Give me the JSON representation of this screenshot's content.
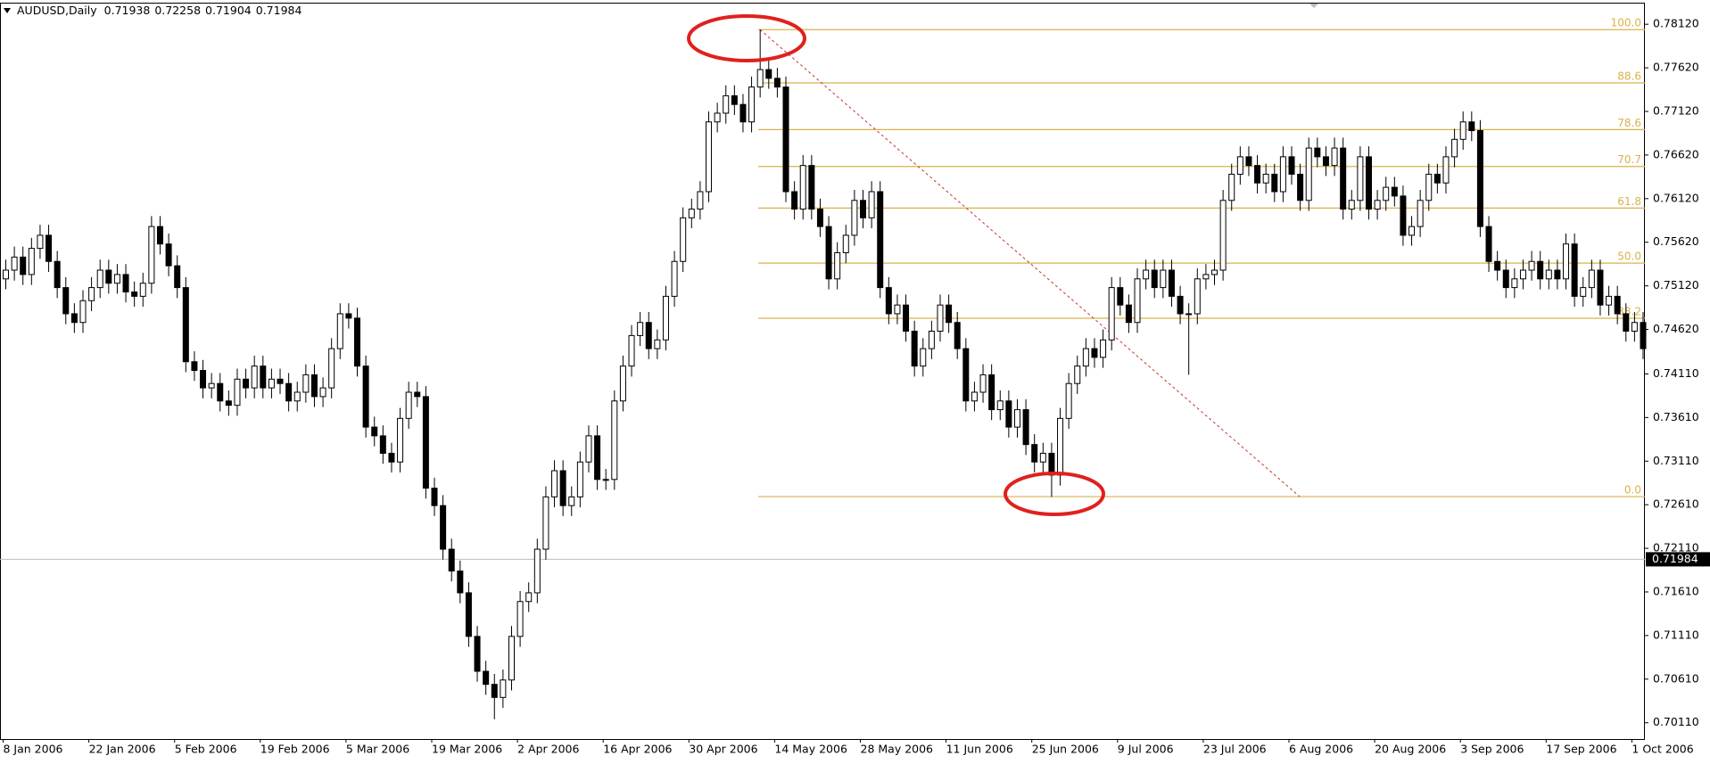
{
  "chart_data": {
    "type": "candlestick",
    "symbol": "AUDUSD,Daily",
    "header_values": [
      0.71938,
      0.72258,
      0.71904,
      0.71984
    ],
    "categories": [
      "8 Jan 2006",
      null,
      null,
      null,
      null,
      null,
      null,
      null,
      null,
      null,
      "22 Jan 2006",
      null,
      null,
      null,
      null,
      null,
      null,
      null,
      null,
      null,
      "5 Feb 2006",
      null,
      null,
      null,
      null,
      null,
      null,
      null,
      null,
      null,
      "19 Feb 2006",
      null,
      null,
      null,
      null,
      null,
      null,
      null,
      null,
      null,
      "5 Mar 2006",
      null,
      null,
      null,
      null,
      null,
      null,
      null,
      null,
      null,
      "19 Mar 2006",
      null,
      null,
      null,
      null,
      null,
      null,
      null,
      null,
      null,
      "2 Apr 2006",
      null,
      null,
      null,
      null,
      null,
      null,
      null,
      null,
      null,
      "16 Apr 2006",
      null,
      null,
      null,
      null,
      null,
      null,
      null,
      null,
      null,
      "30 Apr 2006",
      null,
      null,
      null,
      null,
      null,
      null,
      null,
      null,
      null,
      "14 May 2006",
      null,
      null,
      null,
      null,
      null,
      null,
      null,
      null,
      null,
      "28 May 2006",
      null,
      null,
      null,
      null,
      null,
      null,
      null,
      null,
      null,
      "11 Jun 2006",
      null,
      null,
      null,
      null,
      null,
      null,
      null,
      null,
      null,
      "25 Jun 2006",
      null,
      null,
      null,
      null,
      null,
      null,
      null,
      null,
      null,
      "9 Jul 2006",
      null,
      null,
      null,
      null,
      null,
      null,
      null,
      null,
      null,
      "23 Jul 2006",
      null,
      null,
      null,
      null,
      null,
      null,
      null,
      null,
      null,
      "6 Aug 2006",
      null,
      null,
      null,
      null,
      null,
      null,
      null,
      null,
      null,
      "20 Aug 2006",
      null,
      null,
      null,
      null,
      null,
      null,
      null,
      null,
      null,
      "3 Sep 2006",
      null,
      null,
      null,
      null,
      null,
      null,
      null,
      null,
      null,
      "17 Sep 2006",
      null,
      null,
      null,
      null,
      null,
      null,
      null,
      null,
      null,
      "1 Oct 2006",
      null
    ],
    "open": [
      0.752,
      0.753,
      0.7545,
      0.7525,
      0.7555,
      0.757,
      0.754,
      0.751,
      0.748,
      0.747,
      0.7495,
      0.751,
      0.753,
      0.7515,
      0.7525,
      0.7505,
      0.75,
      0.7515,
      0.758,
      0.756,
      0.7535,
      0.751,
      0.7425,
      0.7415,
      0.7395,
      0.74,
      0.738,
      0.7375,
      0.7405,
      0.7395,
      0.742,
      0.7395,
      0.7405,
      0.74,
      0.738,
      0.739,
      0.741,
      0.7385,
      0.7395,
      0.744,
      0.748,
      0.7475,
      0.742,
      0.735,
      0.734,
      0.732,
      0.731,
      0.736,
      0.739,
      0.7385,
      0.728,
      0.726,
      0.721,
      0.7185,
      0.716,
      0.711,
      0.707,
      0.7055,
      0.704,
      0.706,
      0.711,
      0.715,
      0.716,
      0.721,
      0.727,
      0.73,
      0.726,
      0.727,
      0.731,
      0.734,
      0.729,
      0.729,
      0.738,
      0.742,
      0.7455,
      0.747,
      0.744,
      0.745,
      0.75,
      0.754,
      0.759,
      0.76,
      0.762,
      0.77,
      0.771,
      0.773,
      0.772,
      0.77,
      0.774,
      0.776,
      0.775,
      0.774,
      0.762,
      0.76,
      0.765,
      0.76,
      0.758,
      0.752,
      0.755,
      0.757,
      0.761,
      0.759,
      0.762,
      0.751,
      0.748,
      0.749,
      0.746,
      0.742,
      0.744,
      0.746,
      0.749,
      0.747,
      0.744,
      0.738,
      0.739,
      0.741,
      0.737,
      0.738,
      0.735,
      0.737,
      0.733,
      0.731,
      0.732,
      0.7295,
      0.736,
      0.74,
      0.742,
      0.744,
      0.743,
      0.745,
      0.751,
      0.749,
      0.747,
      0.752,
      0.753,
      0.751,
      0.753,
      0.75,
      0.748,
      0.748,
      0.752,
      0.7525,
      0.753,
      0.761,
      0.764,
      0.766,
      0.765,
      0.763,
      0.764,
      0.762,
      0.766,
      0.764,
      0.761,
      0.767,
      0.766,
      0.765,
      0.767,
      0.76,
      0.761,
      0.766,
      0.76,
      0.761,
      0.7625,
      0.7615,
      0.757,
      0.758,
      0.761,
      0.764,
      0.763,
      0.766,
      0.768,
      0.77,
      0.769,
      0.758,
      0.754,
      0.753,
      0.751,
      0.752,
      0.753,
      0.754,
      0.752,
      0.753,
      0.752,
      0.756,
      0.75,
      0.751,
      0.753,
      0.749,
      0.75,
      0.748,
      0.746,
      0.747
    ],
    "high": [
      0.7542,
      0.7557,
      0.7557,
      0.7567,
      0.7582,
      0.7582,
      0.7552,
      0.7522,
      0.7492,
      0.7507,
      0.7522,
      0.7542,
      0.7542,
      0.7537,
      0.7537,
      0.7517,
      0.7527,
      0.7592,
      0.7592,
      0.7572,
      0.7547,
      0.7522,
      0.7437,
      0.7427,
      0.7412,
      0.7412,
      0.7392,
      0.7417,
      0.7417,
      0.7432,
      0.7432,
      0.7417,
      0.7417,
      0.7412,
      0.7402,
      0.7422,
      0.7422,
      0.7407,
      0.7452,
      0.7492,
      0.7492,
      0.7487,
      0.7432,
      0.7362,
      0.7352,
      0.7332,
      0.7372,
      0.7402,
      0.7402,
      0.7397,
      0.7292,
      0.7272,
      0.7222,
      0.7197,
      0.7172,
      0.7122,
      0.7082,
      0.7067,
      0.7072,
      0.7122,
      0.7162,
      0.7172,
      0.7222,
      0.7282,
      0.7312,
      0.7312,
      0.7282,
      0.7322,
      0.7352,
      0.7352,
      0.7302,
      0.7392,
      0.7432,
      0.7467,
      0.7482,
      0.7482,
      0.7462,
      0.7512,
      0.7552,
      0.7602,
      0.7612,
      0.7632,
      0.7712,
      0.7722,
      0.7742,
      0.7742,
      0.7732,
      0.7752,
      0.7806,
      0.7772,
      0.7762,
      0.7752,
      0.7632,
      0.7662,
      0.7662,
      0.7612,
      0.7592,
      0.7562,
      0.7582,
      0.7622,
      0.7622,
      0.7632,
      0.7632,
      0.7522,
      0.7502,
      0.7502,
      0.7472,
      0.7452,
      0.7472,
      0.7502,
      0.7502,
      0.7482,
      0.7452,
      0.7402,
      0.7422,
      0.7422,
      0.7392,
      0.7392,
      0.7382,
      0.7382,
      0.7342,
      0.7332,
      0.7332,
      0.7372,
      0.7412,
      0.7432,
      0.7452,
      0.7452,
      0.7462,
      0.7522,
      0.7522,
      0.7502,
      0.7532,
      0.7542,
      0.7542,
      0.7542,
      0.7542,
      0.7512,
      0.7492,
      0.7532,
      0.7537,
      0.7542,
      0.7622,
      0.7652,
      0.7672,
      0.7672,
      0.7662,
      0.7652,
      0.7652,
      0.7672,
      0.7672,
      0.7652,
      0.7682,
      0.7682,
      0.7672,
      0.7682,
      0.7682,
      0.7622,
      0.7672,
      0.7672,
      0.7622,
      0.7637,
      0.7637,
      0.7627,
      0.7592,
      0.7622,
      0.7652,
      0.7652,
      0.7672,
      0.7692,
      0.7712,
      0.7712,
      0.7702,
      0.7592,
      0.7552,
      0.7542,
      0.7532,
      0.7542,
      0.7552,
      0.7552,
      0.7542,
      0.7542,
      0.7572,
      0.7572,
      0.7522,
      0.7542,
      0.7542,
      0.7512,
      0.7512,
      0.7492,
      0.7482,
      0.7482
    ],
    "low": [
      0.7508,
      0.7518,
      0.7513,
      0.7513,
      0.7543,
      0.7528,
      0.7498,
      0.7468,
      0.7458,
      0.7458,
      0.7483,
      0.7498,
      0.7503,
      0.7503,
      0.7493,
      0.7488,
      0.7488,
      0.7503,
      0.7548,
      0.7523,
      0.7498,
      0.7413,
      0.7403,
      0.7383,
      0.7383,
      0.7368,
      0.7363,
      0.7363,
      0.7383,
      0.7383,
      0.7383,
      0.7383,
      0.7388,
      0.7368,
      0.7368,
      0.7378,
      0.7373,
      0.7373,
      0.7383,
      0.7428,
      0.7463,
      0.7408,
      0.7338,
      0.7328,
      0.7308,
      0.7298,
      0.7298,
      0.7348,
      0.7373,
      0.7268,
      0.7248,
      0.7198,
      0.7173,
      0.7148,
      0.7098,
      0.7058,
      0.7043,
      0.7015,
      0.7028,
      0.7048,
      0.7098,
      0.7138,
      0.7148,
      0.7198,
      0.7258,
      0.7248,
      0.7248,
      0.7258,
      0.7298,
      0.7278,
      0.7278,
      0.7278,
      0.7368,
      0.7408,
      0.7443,
      0.7428,
      0.7428,
      0.7438,
      0.7488,
      0.7528,
      0.7578,
      0.7588,
      0.7608,
      0.7688,
      0.7698,
      0.7708,
      0.7688,
      0.7688,
      0.7728,
      0.7738,
      0.7728,
      0.7608,
      0.7588,
      0.7588,
      0.7588,
      0.7568,
      0.7508,
      0.7508,
      0.7538,
      0.7558,
      0.7578,
      0.7578,
      0.7498,
      0.7468,
      0.7468,
      0.7448,
      0.7408,
      0.7408,
      0.7428,
      0.7448,
      0.7458,
      0.7428,
      0.7368,
      0.7368,
      0.7378,
      0.7358,
      0.7358,
      0.7338,
      0.7338,
      0.7318,
      0.7298,
      0.7298,
      0.727,
      0.7283,
      0.7348,
      0.7388,
      0.7408,
      0.7418,
      0.7418,
      0.7438,
      0.7478,
      0.7458,
      0.7458,
      0.7508,
      0.7498,
      0.7498,
      0.7488,
      0.7468,
      0.741,
      0.7468,
      0.7508,
      0.7513,
      0.7518,
      0.7598,
      0.7628,
      0.7638,
      0.7618,
      0.7618,
      0.7608,
      0.7608,
      0.7628,
      0.7598,
      0.7598,
      0.7648,
      0.7638,
      0.7638,
      0.7588,
      0.7588,
      0.7598,
      0.7588,
      0.7588,
      0.7598,
      0.7603,
      0.7558,
      0.7558,
      0.7568,
      0.7598,
      0.7618,
      0.7618,
      0.7648,
      0.7668,
      0.7678,
      0.7568,
      0.7528,
      0.7518,
      0.7498,
      0.7498,
      0.7508,
      0.7518,
      0.7508,
      0.7508,
      0.7508,
      0.7508,
      0.7488,
      0.7488,
      0.7498,
      0.7478,
      0.7478,
      0.7468,
      0.7448,
      0.7448,
      0.7428
    ],
    "close": [
      0.753,
      0.7545,
      0.7525,
      0.7555,
      0.757,
      0.754,
      0.751,
      0.748,
      0.747,
      0.7495,
      0.751,
      0.753,
      0.7515,
      0.7525,
      0.7505,
      0.75,
      0.7515,
      0.758,
      0.756,
      0.7535,
      0.751,
      0.7425,
      0.7415,
      0.7395,
      0.74,
      0.738,
      0.7375,
      0.7405,
      0.7395,
      0.742,
      0.7395,
      0.7405,
      0.74,
      0.738,
      0.739,
      0.741,
      0.7385,
      0.7395,
      0.744,
      0.748,
      0.7475,
      0.742,
      0.735,
      0.734,
      0.732,
      0.731,
      0.736,
      0.739,
      0.7385,
      0.728,
      0.726,
      0.721,
      0.7185,
      0.716,
      0.711,
      0.707,
      0.7055,
      0.704,
      0.706,
      0.711,
      0.715,
      0.716,
      0.721,
      0.727,
      0.73,
      0.726,
      0.727,
      0.731,
      0.734,
      0.729,
      0.729,
      0.738,
      0.742,
      0.7455,
      0.747,
      0.744,
      0.745,
      0.75,
      0.754,
      0.759,
      0.76,
      0.762,
      0.77,
      0.771,
      0.773,
      0.772,
      0.77,
      0.774,
      0.776,
      0.775,
      0.774,
      0.762,
      0.76,
      0.765,
      0.76,
      0.758,
      0.752,
      0.755,
      0.757,
      0.761,
      0.759,
      0.762,
      0.751,
      0.748,
      0.749,
      0.746,
      0.742,
      0.744,
      0.746,
      0.749,
      0.747,
      0.744,
      0.738,
      0.739,
      0.741,
      0.737,
      0.738,
      0.735,
      0.737,
      0.733,
      0.731,
      0.732,
      0.7295,
      0.736,
      0.74,
      0.742,
      0.744,
      0.743,
      0.745,
      0.751,
      0.749,
      0.747,
      0.752,
      0.753,
      0.751,
      0.753,
      0.75,
      0.748,
      0.748,
      0.752,
      0.7525,
      0.753,
      0.761,
      0.764,
      0.766,
      0.765,
      0.763,
      0.764,
      0.762,
      0.766,
      0.764,
      0.761,
      0.767,
      0.766,
      0.765,
      0.767,
      0.76,
      0.761,
      0.766,
      0.76,
      0.761,
      0.7625,
      0.7615,
      0.757,
      0.758,
      0.761,
      0.764,
      0.763,
      0.766,
      0.768,
      0.77,
      0.769,
      0.758,
      0.754,
      0.753,
      0.751,
      0.752,
      0.753,
      0.754,
      0.752,
      0.753,
      0.752,
      0.756,
      0.75,
      0.751,
      0.753,
      0.749,
      0.75,
      0.748,
      0.746,
      0.747,
      0.744
    ],
    "ylim": [
      0.69923,
      0.78357
    ],
    "yticks": [
      {
        "value": 0.7011,
        "label": "0.70110"
      },
      {
        "value": 0.7061,
        "label": "0.70610"
      },
      {
        "value": 0.7111,
        "label": "0.71110"
      },
      {
        "value": 0.7161,
        "label": "0.71610"
      },
      {
        "value": 0.7211,
        "label": "0.72110"
      },
      {
        "value": 0.7261,
        "label": "0.72610"
      },
      {
        "value": 0.7311,
        "label": "0.73110"
      },
      {
        "value": 0.7361,
        "label": "0.73610"
      },
      {
        "value": 0.7411,
        "label": "0.74110"
      },
      {
        "value": 0.7462,
        "label": "0.74620"
      },
      {
        "value": 0.7512,
        "label": "0.75120"
      },
      {
        "value": 0.7562,
        "label": "0.75620"
      },
      {
        "value": 0.7612,
        "label": "0.76120"
      },
      {
        "value": 0.7662,
        "label": "0.76620"
      },
      {
        "value": 0.7712,
        "label": "0.77120"
      },
      {
        "value": 0.7762,
        "label": "0.77620"
      },
      {
        "value": 0.7812,
        "label": "0.78120"
      }
    ],
    "fib": {
      "high": 0.78058,
      "low": 0.72703,
      "color": "#d9b24c",
      "levels": [
        {
          "value": 100,
          "label": "100.0"
        },
        88.6,
        78.6,
        70.7,
        61.8,
        {
          "value": 50,
          "label": "50.0"
        },
        38.2,
        {
          "value": 0,
          "label": "0.0"
        }
      ]
    }
  }
}
